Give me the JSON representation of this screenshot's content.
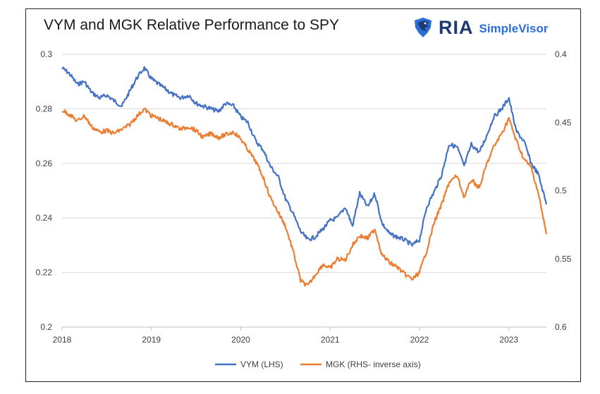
{
  "chart_data": {
    "type": "line",
    "title": "VYM and MGK Relative Performance to SPY",
    "logo": {
      "mark": "eagle-icon",
      "name": "RIA",
      "product": "SimpleVisor",
      "colors": {
        "ria": "#1f3a73",
        "product": "#2b6fd6"
      }
    },
    "x_axis": {
      "tick_labels": [
        "2018",
        "2019",
        "2020",
        "2021",
        "2022",
        "2023"
      ],
      "range": [
        2018.0,
        2023.42
      ]
    },
    "y_left": {
      "tick_labels": [
        "0.3",
        "0.28",
        "0.26",
        "0.24",
        "0.22",
        "0.2"
      ],
      "range": [
        0.2,
        0.3
      ]
    },
    "y_right": {
      "tick_labels": [
        "0.4",
        "0.45",
        "0.5",
        "0.55",
        "0.6"
      ],
      "range": [
        0.4,
        0.6
      ],
      "inverted": true
    },
    "gridlines": "horizontal",
    "legend_position": "bottom",
    "series": [
      {
        "name": "VYM (LHS)",
        "axis": "left",
        "color": "#4472c4",
        "points": [
          [
            2018.0,
            0.295
          ],
          [
            2018.08,
            0.293
          ],
          [
            2018.17,
            0.289
          ],
          [
            2018.25,
            0.29
          ],
          [
            2018.33,
            0.286
          ],
          [
            2018.42,
            0.284
          ],
          [
            2018.5,
            0.285
          ],
          [
            2018.58,
            0.283
          ],
          [
            2018.67,
            0.281
          ],
          [
            2018.75,
            0.286
          ],
          [
            2018.83,
            0.291
          ],
          [
            2018.92,
            0.295
          ],
          [
            2019.0,
            0.291
          ],
          [
            2019.08,
            0.289
          ],
          [
            2019.17,
            0.287
          ],
          [
            2019.25,
            0.285
          ],
          [
            2019.33,
            0.284
          ],
          [
            2019.42,
            0.285
          ],
          [
            2019.5,
            0.282
          ],
          [
            2019.58,
            0.281
          ],
          [
            2019.67,
            0.28
          ],
          [
            2019.75,
            0.279
          ],
          [
            2019.83,
            0.282
          ],
          [
            2019.92,
            0.281
          ],
          [
            2020.0,
            0.277
          ],
          [
            2020.08,
            0.275
          ],
          [
            2020.17,
            0.268
          ],
          [
            2020.25,
            0.265
          ],
          [
            2020.33,
            0.259
          ],
          [
            2020.42,
            0.255
          ],
          [
            2020.5,
            0.247
          ],
          [
            2020.58,
            0.242
          ],
          [
            2020.67,
            0.235
          ],
          [
            2020.75,
            0.232
          ],
          [
            2020.83,
            0.233
          ],
          [
            2020.92,
            0.236
          ],
          [
            2021.0,
            0.239
          ],
          [
            2021.08,
            0.24
          ],
          [
            2021.17,
            0.244
          ],
          [
            2021.25,
            0.237
          ],
          [
            2021.33,
            0.249
          ],
          [
            2021.42,
            0.244
          ],
          [
            2021.5,
            0.249
          ],
          [
            2021.58,
            0.238
          ],
          [
            2021.67,
            0.234
          ],
          [
            2021.75,
            0.233
          ],
          [
            2021.83,
            0.232
          ],
          [
            2021.92,
            0.23
          ],
          [
            2022.0,
            0.232
          ],
          [
            2022.08,
            0.244
          ],
          [
            2022.17,
            0.25
          ],
          [
            2022.25,
            0.256
          ],
          [
            2022.33,
            0.267
          ],
          [
            2022.42,
            0.266
          ],
          [
            2022.5,
            0.259
          ],
          [
            2022.58,
            0.267
          ],
          [
            2022.67,
            0.264
          ],
          [
            2022.75,
            0.27
          ],
          [
            2022.83,
            0.277
          ],
          [
            2022.92,
            0.28
          ],
          [
            2023.0,
            0.284
          ],
          [
            2023.08,
            0.272
          ],
          [
            2023.17,
            0.268
          ],
          [
            2023.25,
            0.26
          ],
          [
            2023.33,
            0.256
          ],
          [
            2023.42,
            0.245
          ]
        ]
      },
      {
        "name": "MGK (RHS- inverse axis)",
        "axis": "right",
        "color": "#ed7d31",
        "points": [
          [
            2018.0,
            0.441
          ],
          [
            2018.08,
            0.444
          ],
          [
            2018.17,
            0.449
          ],
          [
            2018.25,
            0.445
          ],
          [
            2018.33,
            0.453
          ],
          [
            2018.42,
            0.457
          ],
          [
            2018.5,
            0.456
          ],
          [
            2018.58,
            0.458
          ],
          [
            2018.67,
            0.455
          ],
          [
            2018.75,
            0.452
          ],
          [
            2018.83,
            0.446
          ],
          [
            2018.92,
            0.44
          ],
          [
            2019.0,
            0.445
          ],
          [
            2019.08,
            0.447
          ],
          [
            2019.17,
            0.45
          ],
          [
            2019.25,
            0.452
          ],
          [
            2019.33,
            0.455
          ],
          [
            2019.42,
            0.453
          ],
          [
            2019.5,
            0.456
          ],
          [
            2019.58,
            0.461
          ],
          [
            2019.67,
            0.458
          ],
          [
            2019.75,
            0.461
          ],
          [
            2019.83,
            0.459
          ],
          [
            2019.92,
            0.457
          ],
          [
            2020.0,
            0.462
          ],
          [
            2020.08,
            0.47
          ],
          [
            2020.17,
            0.479
          ],
          [
            2020.25,
            0.49
          ],
          [
            2020.33,
            0.505
          ],
          [
            2020.42,
            0.516
          ],
          [
            2020.5,
            0.526
          ],
          [
            2020.58,
            0.543
          ],
          [
            2020.67,
            0.566
          ],
          [
            2020.75,
            0.57
          ],
          [
            2020.83,
            0.562
          ],
          [
            2020.92,
            0.554
          ],
          [
            2021.0,
            0.557
          ],
          [
            2021.08,
            0.55
          ],
          [
            2021.17,
            0.551
          ],
          [
            2021.25,
            0.54
          ],
          [
            2021.33,
            0.533
          ],
          [
            2021.42,
            0.535
          ],
          [
            2021.5,
            0.528
          ],
          [
            2021.58,
            0.547
          ],
          [
            2021.67,
            0.553
          ],
          [
            2021.75,
            0.556
          ],
          [
            2021.83,
            0.561
          ],
          [
            2021.92,
            0.565
          ],
          [
            2022.0,
            0.56
          ],
          [
            2022.08,
            0.544
          ],
          [
            2022.17,
            0.522
          ],
          [
            2022.25,
            0.51
          ],
          [
            2022.33,
            0.494
          ],
          [
            2022.42,
            0.489
          ],
          [
            2022.5,
            0.505
          ],
          [
            2022.58,
            0.492
          ],
          [
            2022.67,
            0.498
          ],
          [
            2022.75,
            0.481
          ],
          [
            2022.83,
            0.468
          ],
          [
            2022.92,
            0.458
          ],
          [
            2023.0,
            0.447
          ],
          [
            2023.08,
            0.463
          ],
          [
            2023.17,
            0.477
          ],
          [
            2023.25,
            0.483
          ],
          [
            2023.33,
            0.502
          ],
          [
            2023.42,
            0.532
          ]
        ]
      }
    ]
  }
}
